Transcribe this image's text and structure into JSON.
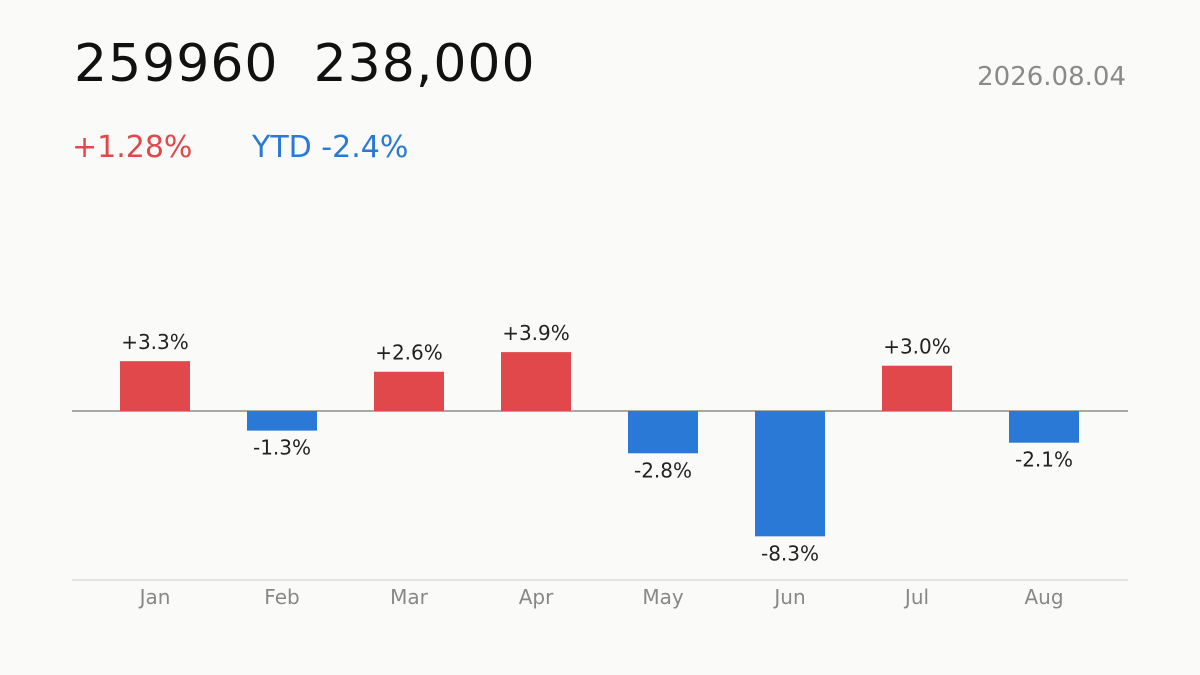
{
  "header": {
    "title": "259960  238,000",
    "date": "2026.08.04",
    "change": "+1.28%",
    "ytd": "YTD -2.4%"
  },
  "colors": {
    "positive": "#e0484b",
    "negative": "#2a79d6"
  },
  "chart_data": {
    "type": "bar",
    "categories": [
      "Jan",
      "Feb",
      "Mar",
      "Apr",
      "May",
      "Jun",
      "Jul",
      "Aug"
    ],
    "values": [
      3.3,
      -1.3,
      2.6,
      3.9,
      -2.8,
      -8.3,
      3.0,
      -2.1
    ],
    "data_labels": [
      "+3.3%",
      "-1.3%",
      "+2.6%",
      "+3.9%",
      "-2.8%",
      "-8.3%",
      "+3.0%",
      "-2.1%"
    ],
    "title": "",
    "xlabel": "",
    "ylabel": "",
    "grid": false
  }
}
